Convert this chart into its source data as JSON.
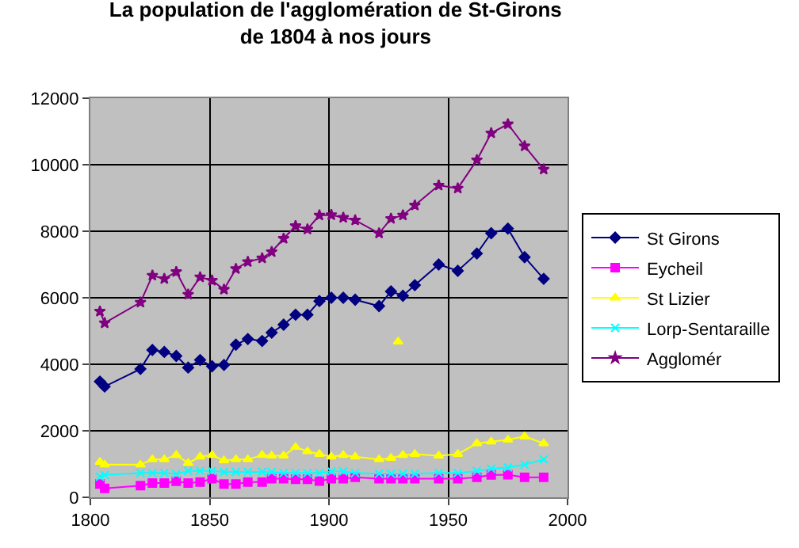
{
  "chart_data": {
    "type": "line",
    "title": "La population de l'agglomération de St-Girons\nde 1804 à nos jours",
    "x": [
      1804,
      1806,
      1821,
      1826,
      1831,
      1836,
      1841,
      1846,
      1851,
      1856,
      1861,
      1866,
      1872,
      1876,
      1881,
      1886,
      1891,
      1896,
      1901,
      1906,
      1911,
      1921,
      1926,
      1931,
      1936,
      1946,
      1954,
      1962,
      1968,
      1975,
      1982,
      1990
    ],
    "series": [
      {
        "name": "St Girons",
        "color": "#000080",
        "marker": "diamond",
        "values": [
          3480,
          3330,
          3860,
          4430,
          4370,
          4250,
          3900,
          4130,
          3940,
          3980,
          4590,
          4760,
          4700,
          4950,
          5190,
          5490,
          5490,
          5900,
          6000,
          6000,
          5940,
          5750,
          6190,
          6060,
          6380,
          7000,
          6810,
          7330,
          7940,
          8080,
          7220,
          6570
        ]
      },
      {
        "name": "Eycheil",
        "color": "#ff00ff",
        "marker": "square",
        "values": [
          400,
          270,
          350,
          430,
          430,
          480,
          430,
          460,
          560,
          400,
          400,
          460,
          460,
          560,
          560,
          540,
          540,
          490,
          560,
          560,
          600,
          560,
          560,
          560,
          560,
          560,
          560,
          600,
          670,
          680,
          600,
          600
        ]
      },
      {
        "name": "St Lizier",
        "color": "#ffff00",
        "marker": "triangle",
        "values": [
          1060,
          980,
          980,
          1140,
          1140,
          1270,
          1030,
          1220,
          1270,
          1110,
          1140,
          1140,
          1270,
          1250,
          1250,
          1510,
          1380,
          1300,
          1220,
          1270,
          1220,
          1140,
          1180,
          1270,
          1300,
          1250,
          1300,
          1620,
          1670,
          1730,
          1830,
          1620
        ]
      },
      {
        "name": "Lorp-Sentaraille",
        "color": "#00ffff",
        "marker": "cross",
        "values": [
          620,
          670,
          730,
          730,
          730,
          700,
          790,
          790,
          790,
          760,
          760,
          760,
          760,
          760,
          730,
          730,
          730,
          730,
          780,
          780,
          730,
          710,
          710,
          710,
          710,
          730,
          730,
          790,
          860,
          900,
          980,
          1140
        ]
      },
      {
        "name": "Agglomér",
        "color": "#800080",
        "marker": "star",
        "values": [
          5590,
          5240,
          5860,
          6670,
          6570,
          6780,
          6100,
          6620,
          6520,
          6250,
          6870,
          7080,
          7190,
          7380,
          7780,
          8160,
          8060,
          8480,
          8490,
          8410,
          8330,
          7940,
          8380,
          8480,
          8780,
          9380,
          9290,
          10140,
          10950,
          11220,
          10560,
          9860
        ]
      },
      {
        "type": "scatter",
        "color": "#ffff00",
        "marker": "triangle",
        "x": [
          1929
        ],
        "values": [
          4680
        ]
      }
    ],
    "xlim": [
      1800,
      2000
    ],
    "xticks": [
      1800,
      1850,
      1900,
      1950,
      2000
    ],
    "ylim": [
      0,
      12000
    ],
    "yticks": [
      0,
      2000,
      4000,
      6000,
      8000,
      10000,
      12000
    ],
    "grid": true,
    "legend": "right"
  }
}
